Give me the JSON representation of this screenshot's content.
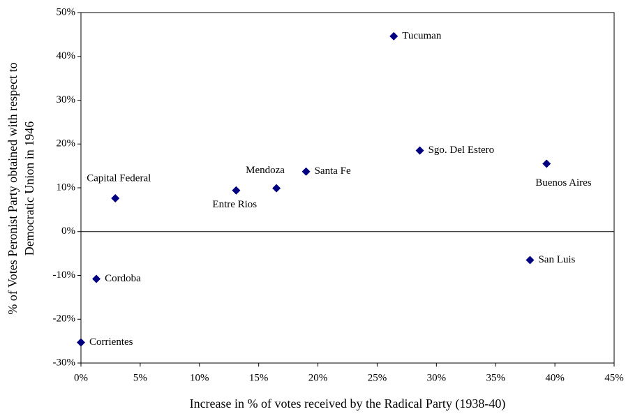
{
  "chart_data": {
    "type": "scatter",
    "xlabel": "Increase in % of votes received by the Radical Party (1938-40)",
    "ylabel": [
      "% of Votes Peronist Party obtained with respect to",
      "Democratic Union in 1946"
    ],
    "color": "#000080",
    "labels": [
      "Tucuman",
      "Sgo. Del Estero",
      "Buenos Aires",
      "Santa Fe",
      "Mendoza",
      "Entre Rios",
      "Capital Federal",
      "San Luis",
      "Cordoba",
      "Corrientes"
    ],
    "x": [
      26.4,
      28.6,
      39.3,
      19.0,
      16.5,
      13.1,
      2.9,
      37.9,
      1.3,
      0
    ],
    "y": [
      44.6,
      18.5,
      15.5,
      13.7,
      9.9,
      9.4,
      7.6,
      -6.5,
      -10.8,
      -25.3
    ],
    "xlim": [
      0,
      45
    ],
    "xticks": [
      {
        "value": 0,
        "label": "0%"
      },
      {
        "value": 5,
        "label": "5%"
      },
      {
        "value": 10,
        "label": "10%"
      },
      {
        "value": 15,
        "label": "15%"
      },
      {
        "value": 20,
        "label": "20%"
      },
      {
        "value": 25,
        "label": "25%"
      },
      {
        "value": 30,
        "label": "30%"
      },
      {
        "value": 35,
        "label": "35%"
      },
      {
        "value": 40,
        "label": "40%"
      },
      {
        "value": 45,
        "label": "45%"
      }
    ],
    "ylim": [
      -30,
      50
    ],
    "yticks": [
      {
        "value": -30,
        "label": "-30%"
      },
      {
        "value": -20,
        "label": "-20%"
      },
      {
        "value": -10,
        "label": "-10%"
      },
      {
        "value": 0,
        "label": "0%"
      },
      {
        "value": 10,
        "label": "10%"
      },
      {
        "value": 20,
        "label": "20%"
      },
      {
        "value": 30,
        "label": "30%"
      },
      {
        "value": 40,
        "label": "40%"
      },
      {
        "value": 50,
        "label": "50%"
      }
    ]
  }
}
